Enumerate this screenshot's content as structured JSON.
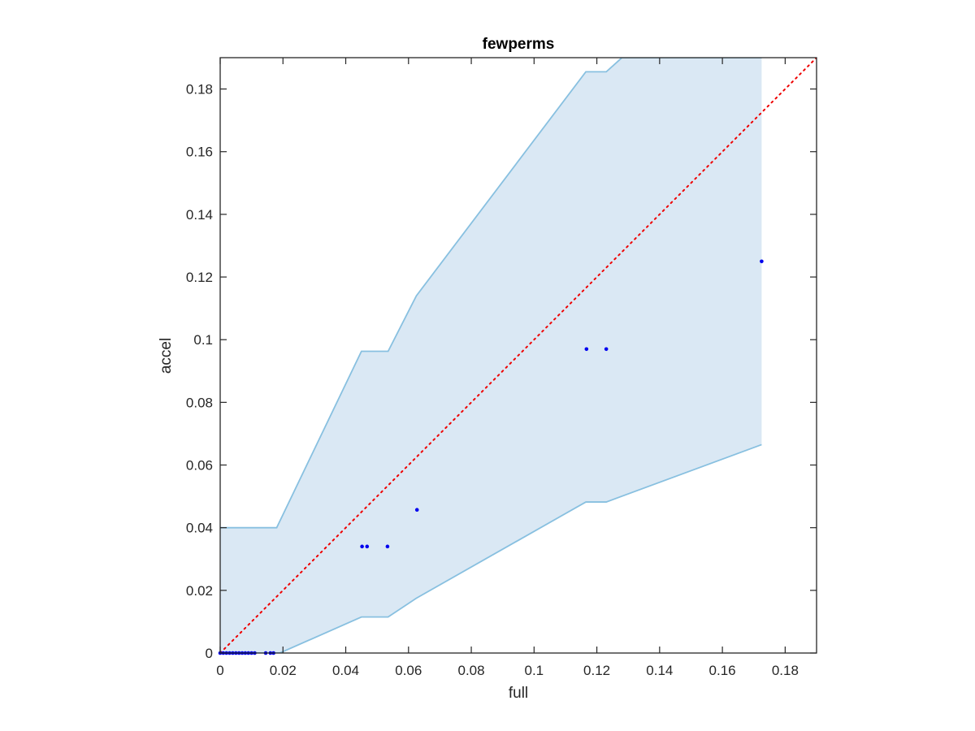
{
  "chart_data": {
    "type": "scatter",
    "title": "fewperms",
    "xlabel": "full",
    "ylabel": "accel",
    "xlim": [
      0,
      0.19
    ],
    "ylim": [
      0,
      0.19
    ],
    "x_ticks": [
      {
        "value": 0,
        "label": "0"
      },
      {
        "value": 0.02,
        "label": "0.02"
      },
      {
        "value": 0.04,
        "label": "0.04"
      },
      {
        "value": 0.06,
        "label": "0.06"
      },
      {
        "value": 0.08,
        "label": "0.08"
      },
      {
        "value": 0.1,
        "label": "0.1"
      },
      {
        "value": 0.12,
        "label": "0.12"
      },
      {
        "value": 0.14,
        "label": "0.14"
      },
      {
        "value": 0.16,
        "label": "0.16"
      },
      {
        "value": 0.18,
        "label": "0.18"
      }
    ],
    "y_ticks": [
      {
        "value": 0,
        "label": "0"
      },
      {
        "value": 0.02,
        "label": "0.02"
      },
      {
        "value": 0.04,
        "label": "0.04"
      },
      {
        "value": 0.06,
        "label": "0.06"
      },
      {
        "value": 0.08,
        "label": "0.08"
      },
      {
        "value": 0.1,
        "label": "0.1"
      },
      {
        "value": 0.12,
        "label": "0.12"
      },
      {
        "value": 0.14,
        "label": "0.14"
      },
      {
        "value": 0.16,
        "label": "0.16"
      },
      {
        "value": 0.18,
        "label": "0.18"
      }
    ],
    "grid": false,
    "colors": {
      "band_fill": "#dae8f4",
      "band_edge": "#88c0e0",
      "points": "#0000ee",
      "diagonal": "#ee0000",
      "axes": "#262626"
    },
    "band": {
      "upper": [
        [
          0,
          0.04
        ],
        [
          0.018,
          0.04
        ],
        [
          0.045,
          0.0963
        ],
        [
          0.0535,
          0.0963
        ],
        [
          0.0625,
          0.114
        ],
        [
          0.1165,
          0.1855
        ],
        [
          0.123,
          0.1855
        ],
        [
          0.128,
          0.19
        ],
        [
          0.1725,
          0.19
        ]
      ],
      "lower": [
        [
          0,
          0
        ],
        [
          0.019,
          0
        ],
        [
          0.045,
          0.0115
        ],
        [
          0.0535,
          0.0115
        ],
        [
          0.0625,
          0.0175
        ],
        [
          0.1165,
          0.0482
        ],
        [
          0.123,
          0.0482
        ],
        [
          0.1725,
          0.0665
        ]
      ]
    },
    "reference_line": [
      [
        0,
        0
      ],
      [
        0.19,
        0.19
      ]
    ],
    "points": [
      {
        "x": 0.0,
        "y": 0.0
      },
      {
        "x": 0.001,
        "y": 0.0
      },
      {
        "x": 0.002,
        "y": 0.0
      },
      {
        "x": 0.003,
        "y": 0.0
      },
      {
        "x": 0.004,
        "y": 0.0
      },
      {
        "x": 0.005,
        "y": 0.0
      },
      {
        "x": 0.006,
        "y": 0.0
      },
      {
        "x": 0.007,
        "y": 0.0
      },
      {
        "x": 0.008,
        "y": 0.0
      },
      {
        "x": 0.009,
        "y": 0.0
      },
      {
        "x": 0.01,
        "y": 0.0
      },
      {
        "x": 0.011,
        "y": 0.0
      },
      {
        "x": 0.0145,
        "y": 0.0
      },
      {
        "x": 0.016,
        "y": 0.0
      },
      {
        "x": 0.017,
        "y": 0.0
      },
      {
        "x": 0.0452,
        "y": 0.034
      },
      {
        "x": 0.0468,
        "y": 0.034
      },
      {
        "x": 0.0533,
        "y": 0.034
      },
      {
        "x": 0.0627,
        "y": 0.0457
      },
      {
        "x": 0.1167,
        "y": 0.097
      },
      {
        "x": 0.123,
        "y": 0.097
      },
      {
        "x": 0.1725,
        "y": 0.125
      }
    ]
  }
}
